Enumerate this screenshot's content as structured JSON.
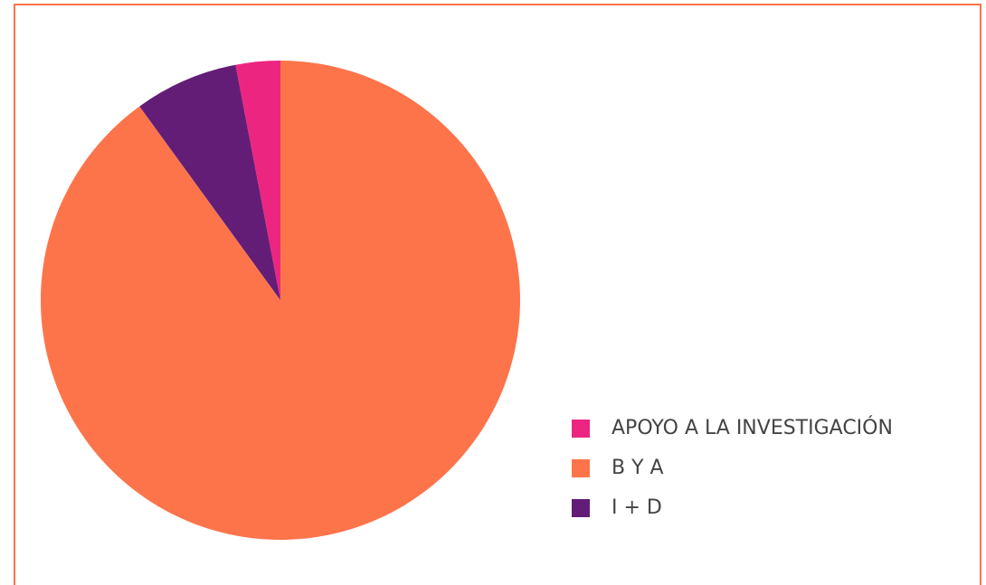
{
  "chart_data": {
    "type": "pie",
    "categories": [
      "APOYO A LA INVESTIGACIÓN",
      "B Y A",
      "I + D"
    ],
    "values": [
      3,
      90,
      7
    ],
    "colors": [
      "#ec2680",
      "#fd744b",
      "#631d76"
    ]
  }
}
